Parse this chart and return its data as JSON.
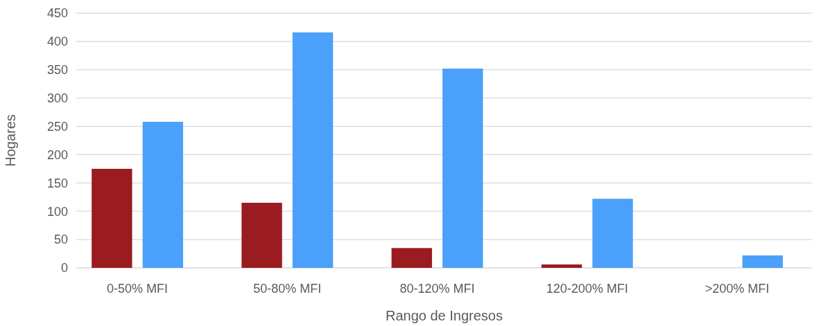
{
  "chart_data": {
    "type": "bar",
    "xlabel": "Rango de Ingresos",
    "ylabel": "Hogares",
    "categories": [
      "0-50% MFI",
      "50-80% MFI",
      "80-120% MFI",
      "120-200% MFI",
      ">200% MFI"
    ],
    "series": [
      {
        "color": "#9a1c20",
        "values": [
          175,
          115,
          35,
          6,
          0
        ]
      },
      {
        "color": "#4aa0fa",
        "values": [
          258,
          416,
          352,
          122,
          22
        ]
      }
    ],
    "ylim": [
      0,
      450
    ],
    "yticks": [
      0,
      50,
      100,
      150,
      200,
      250,
      300,
      350,
      400,
      450
    ],
    "grid": "y"
  }
}
